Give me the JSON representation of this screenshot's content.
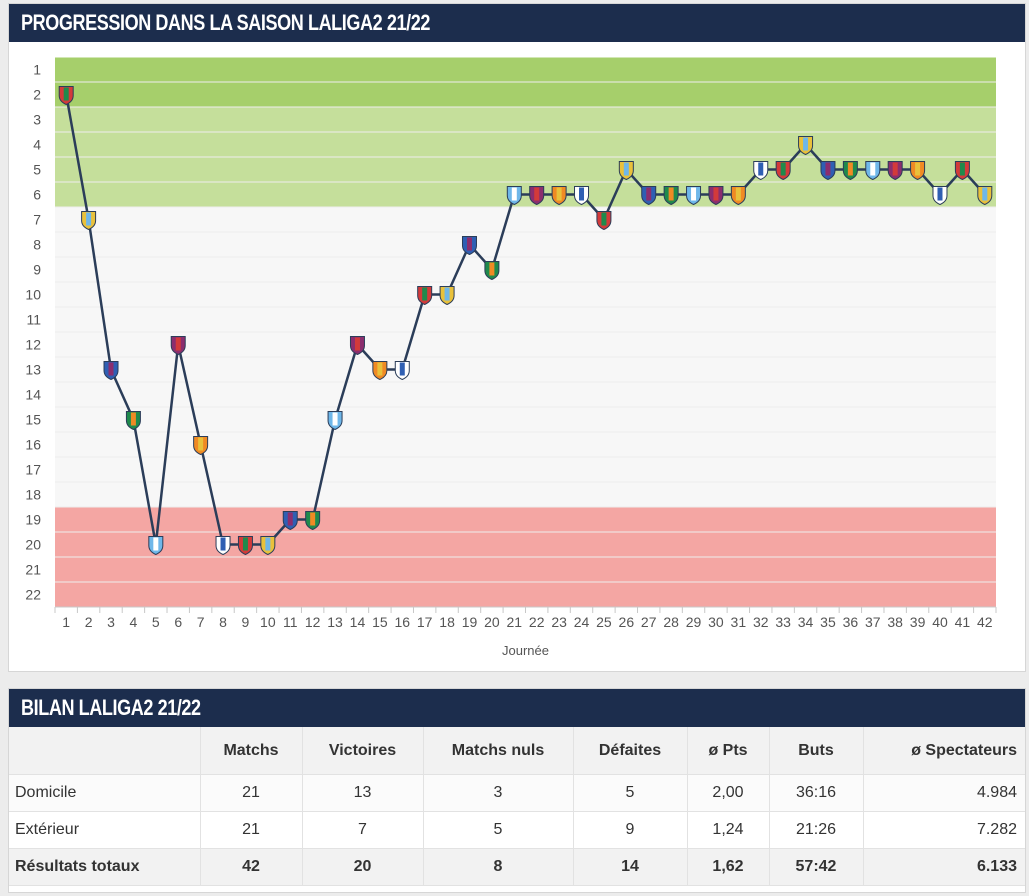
{
  "chart_panel": {
    "title": "PROGRESSION DANS LA SAISON LALIGA2 21/22"
  },
  "chart_data": {
    "type": "line",
    "xlabel": "Journée",
    "ylabel": "",
    "x": [
      1,
      2,
      3,
      4,
      5,
      6,
      7,
      8,
      9,
      10,
      11,
      12,
      13,
      14,
      15,
      16,
      17,
      18,
      19,
      20,
      21,
      22,
      23,
      24,
      25,
      26,
      27,
      28,
      29,
      30,
      31,
      32,
      33,
      34,
      35,
      36,
      37,
      38,
      39,
      40,
      41,
      42
    ],
    "series": [
      {
        "values": [
          2,
          7,
          13,
          15,
          20,
          12,
          16,
          20,
          20,
          20,
          19,
          19,
          15,
          12,
          13,
          13,
          10,
          10,
          8,
          9,
          6,
          6,
          6,
          6,
          7,
          5,
          6,
          6,
          6,
          6,
          6,
          5,
          5,
          4,
          5,
          5,
          5,
          5,
          5,
          6,
          5,
          6
        ]
      }
    ],
    "ylim": [
      1,
      22
    ],
    "y_inverted": true,
    "zones": [
      {
        "from": 1,
        "to": 2,
        "color": "#a6cf6b"
      },
      {
        "from": 3,
        "to": 6,
        "color": "#c5df9b"
      },
      {
        "from": 7,
        "to": 18,
        "color": "#f7f7f7"
      },
      {
        "from": 19,
        "to": 22,
        "color": "#f4a6a3"
      }
    ],
    "line_color": "#2b3d59",
    "grid": true
  },
  "table_panel": {
    "title": "BILAN LALIGA2 21/22",
    "columns": [
      "",
      "Matchs",
      "Victoires",
      "Matchs nuls",
      "Défaites",
      "ø Pts",
      "Buts",
      "ø Spectateurs"
    ],
    "rows": [
      [
        "Domicile",
        "21",
        "13",
        "3",
        "5",
        "2,00",
        "36:16",
        "4.984"
      ],
      [
        "Extérieur",
        "21",
        "7",
        "5",
        "9",
        "1,24",
        "21:26",
        "7.282"
      ],
      [
        "Résultats totaux",
        "42",
        "20",
        "8",
        "14",
        "1,62",
        "57:42",
        "6.133"
      ]
    ]
  },
  "colors": {
    "header_bg": "#1c2d4d",
    "line": "#2b3d59"
  }
}
